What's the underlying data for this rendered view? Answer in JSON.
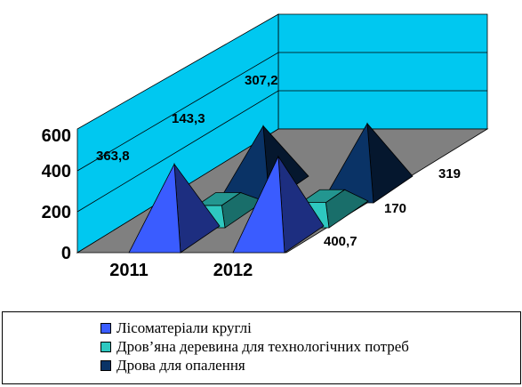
{
  "chart_data": {
    "type": "bar",
    "shape": "3d-pyramid",
    "categories": [
      "2011",
      "2012"
    ],
    "y_ticks": [
      "0",
      "200",
      "400",
      "600"
    ],
    "ylim": [
      0,
      600
    ],
    "series": [
      {
        "name": "Лісоматеріали круглі",
        "values": [
          363.8,
          400.7
        ],
        "color": "#3a5cff"
      },
      {
        "name": "Дров’яна деревина для технологічних потреб",
        "values": [
          143.3,
          170
        ],
        "color": "#2ec8c0"
      },
      {
        "name": "Дрова для опалення",
        "values": [
          307.2,
          319
        ],
        "color": "#0a3366"
      }
    ],
    "data_labels": [
      [
        "363,8",
        "400,7"
      ],
      [
        "143,3",
        "170"
      ],
      [
        "307,2",
        "319"
      ]
    ],
    "back_wall_color": "#00c8f0",
    "floor_color": "#808080",
    "legend_position": "bottom"
  }
}
